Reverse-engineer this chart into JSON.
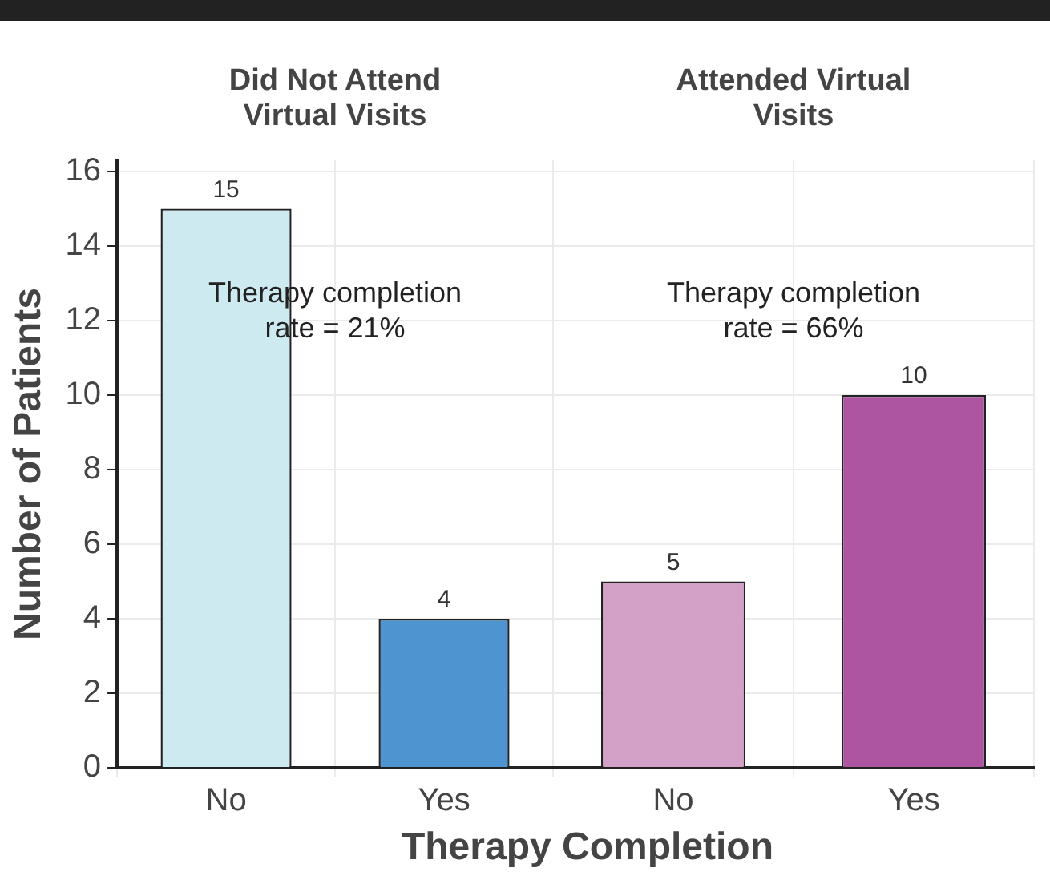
{
  "chart_data": [
    {
      "type": "bar",
      "title": "Did Not Attend Virtual Visits",
      "ylabel": "Number of Patients",
      "xlabel": "Therapy Completion",
      "categories": [
        "No",
        "Yes"
      ],
      "values": [
        15,
        4
      ],
      "colors": [
        "#cdeaf0",
        "#4d94d1"
      ],
      "ylim": [
        0,
        16.3
      ],
      "yticks": [
        0,
        2,
        4,
        6,
        8,
        10,
        12,
        14,
        16
      ],
      "grid": true,
      "data_labels": true,
      "annotations": [
        "Therapy completion rate = 21%"
      ]
    },
    {
      "type": "bar",
      "title": "Attended Virtual Visits",
      "categories": [
        "No",
        "Yes"
      ],
      "values": [
        5,
        10
      ],
      "colors": [
        "#d3a1c8",
        "#ae55a1"
      ],
      "ylim": [
        0,
        16.3
      ],
      "yticks": [
        0,
        2,
        4,
        6,
        8,
        10,
        12,
        14,
        16
      ],
      "grid": true,
      "data_labels": true,
      "tick_labels": "x",
      "annotations": [
        "Therapy completion rate = 66%"
      ]
    }
  ]
}
